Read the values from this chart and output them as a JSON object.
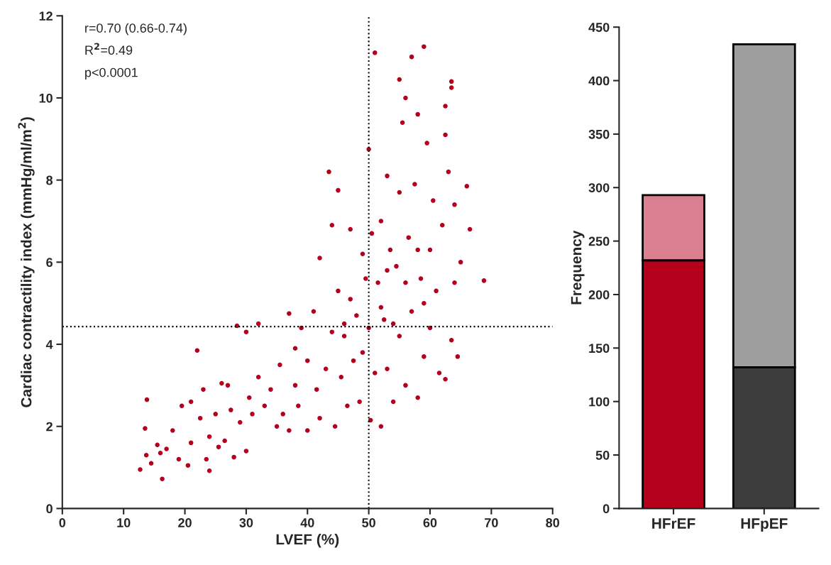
{
  "chart_data": [
    {
      "type": "scatter",
      "xlabel": "LVEF (%)",
      "ylabel": "Cardiac contractility index (mmHg/ml/m$^{2}$)",
      "xlim": [
        0,
        80
      ],
      "xticks": [
        0,
        10,
        20,
        30,
        40,
        50,
        60,
        70,
        80
      ],
      "ylim": [
        0,
        12
      ],
      "yticks": [
        0,
        2,
        4,
        6,
        8,
        10,
        12
      ],
      "marker": "circle",
      "grid": false,
      "legend": false,
      "annotations": [
        "r=0.70 (0.66-0.74)",
        "R$^{2}$=0.49",
        "p<0.0001"
      ],
      "ref_lines": [
        {
          "axis": "x",
          "value": 50,
          "line_style": "dotted",
          "color": "#000000"
        },
        {
          "axis": "y",
          "value": 4.43,
          "line_style": "dotted",
          "color": "#000000"
        }
      ],
      "series": [
        {
          "color": "#b5001c",
          "x": [
            12.7,
            13.7,
            13.8,
            13.5,
            14.5,
            16.3,
            15.5,
            17,
            18,
            19.5,
            20.5,
            21,
            22,
            22.5,
            23,
            23.5,
            24,
            24,
            25,
            25.5,
            26,
            26.5,
            27.5,
            28,
            28.5,
            29,
            30,
            30,
            30.5,
            31,
            32,
            32,
            33,
            34,
            35,
            35.5,
            36,
            37,
            37,
            38,
            38.5,
            39,
            40,
            40,
            41,
            41.5,
            42,
            42,
            43,
            43.5,
            44,
            44,
            44.5,
            45,
            45,
            45.5,
            46,
            46.5,
            47,
            47,
            47.5,
            48,
            48.5,
            49,
            49,
            49.5,
            50,
            50,
            50.3,
            50.5,
            51,
            51,
            51.5,
            52,
            52,
            52.5,
            53,
            53,
            53.5,
            54,
            54.5,
            55,
            55,
            55.5,
            56,
            56,
            56.5,
            57,
            57,
            57.5,
            58,
            58,
            58.5,
            59,
            59,
            59.5,
            60,
            60,
            60.5,
            61,
            61.5,
            62,
            62.5,
            62.5,
            63,
            63.5,
            63.5,
            64,
            64,
            64.5,
            65,
            66,
            66.5,
            68.8,
            63.5,
            62.5,
            55,
            46,
            38,
            27,
            21,
            19,
            16,
            53,
            58,
            54,
            59,
            56,
            52
          ],
          "values": [
            0.95,
            1.3,
            2.65,
            1.95,
            1.1,
            0.72,
            1.55,
            1.45,
            1.9,
            2.5,
            1.05,
            1.6,
            3.85,
            2.2,
            2.9,
            1.2,
            0.92,
            1.75,
            2.3,
            1.5,
            3.05,
            1.65,
            2.4,
            1.25,
            4.45,
            2.1,
            4.3,
            1.4,
            2.7,
            2.3,
            4.5,
            3.2,
            2.5,
            2.9,
            2.0,
            3.5,
            2.3,
            4.75,
            1.9,
            3.0,
            2.5,
            4.4,
            3.6,
            1.9,
            4.8,
            2.9,
            6.1,
            2.2,
            3.4,
            8.2,
            6.9,
            4.3,
            2.0,
            7.75,
            5.3,
            3.2,
            4.2,
            2.5,
            6.8,
            5.1,
            3.6,
            4.7,
            2.6,
            6.2,
            3.8,
            5.6,
            8.75,
            4.4,
            2.15,
            6.7,
            3.3,
            11.1,
            5.5,
            2.0,
            7.0,
            4.6,
            8.1,
            3.4,
            6.3,
            2.6,
            5.9,
            7.7,
            4.2,
            9.4,
            3.0,
            10.0,
            6.6,
            11.0,
            4.8,
            7.9,
            2.7,
            9.6,
            5.6,
            11.25,
            3.7,
            8.9,
            6.3,
            4.4,
            7.5,
            5.3,
            3.3,
            6.9,
            9.8,
            3.15,
            8.2,
            10.4,
            4.1,
            7.4,
            5.5,
            3.7,
            6.0,
            7.85,
            6.8,
            5.55,
            10.25,
            9.1,
            10.45,
            4.5,
            3.9,
            3.0,
            2.6,
            1.2,
            1.35,
            5.8,
            6.3,
            4.5,
            5.0,
            5.5,
            4.9
          ]
        }
      ]
    },
    {
      "type": "bar",
      "stacked": true,
      "categories": [
        "HFrEF",
        "HFpEF"
      ],
      "ylabel": "Frequency",
      "ylim": [
        0,
        450
      ],
      "yticks": [
        0,
        50,
        100,
        150,
        200,
        250,
        300,
        350,
        400,
        450
      ],
      "grid": false,
      "legend": false,
      "series": [
        {
          "colors": [
            "#b5001c",
            "#3c3c3c"
          ],
          "values": [
            232,
            132
          ]
        },
        {
          "colors": [
            "#da8090",
            "#9e9e9e"
          ],
          "values": [
            61,
            302
          ]
        }
      ]
    }
  ]
}
